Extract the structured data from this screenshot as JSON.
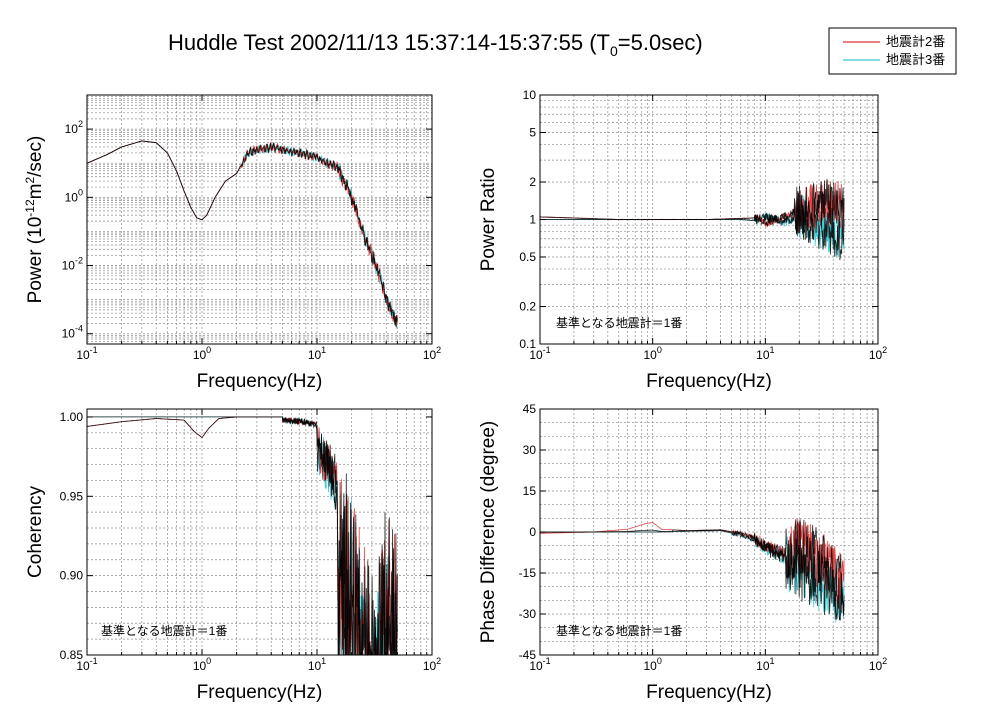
{
  "title": "Huddle Test  2002/11/13  15:37:14-15:37:55 (T",
  "title_sub": "0",
  "title_tail": "=5.0sec)",
  "legend": {
    "entries": [
      {
        "label": "地震計2番",
        "color": "#e03030"
      },
      {
        "label": "地震計3番",
        "color": "#30c8d0"
      }
    ]
  },
  "colors": {
    "ref": "#000000",
    "s2": "#e03030",
    "s3": "#30c8d0"
  },
  "annotation": "基準となる地震計＝1番",
  "chart_data": [
    {
      "id": "power",
      "type": "line",
      "xscale": "log",
      "yscale": "log",
      "xlim": [
        0.1,
        100
      ],
      "ylim": [
        5e-05,
        1000
      ],
      "xlabel": "Frequency(Hz)",
      "ylabel": "Power (10^-12 m^2/sec)",
      "xticks": [
        "10^-1",
        "10^0",
        "10^1",
        "10^2"
      ],
      "yticks": [
        "10^-4",
        "10^-2",
        "10^0",
        "10^2"
      ],
      "series": [
        {
          "x": [
            0.1,
            0.15,
            0.2,
            0.3,
            0.4,
            0.5,
            0.6,
            0.7,
            0.8,
            0.9,
            1.0,
            1.1,
            1.3,
            1.6,
            2.0,
            2.5,
            3,
            4,
            5,
            7,
            10,
            12,
            15,
            20,
            25,
            30,
            35,
            40,
            45,
            50
          ],
          "y": [
            10,
            18,
            30,
            45,
            40,
            20,
            6,
            1.5,
            0.5,
            0.25,
            0.22,
            0.3,
            1,
            3,
            5,
            20,
            25,
            30,
            25,
            20,
            15,
            10,
            8,
            1,
            0.1,
            0.02,
            0.005,
            0.001,
            0.0004,
            0.0002
          ]
        }
      ]
    },
    {
      "id": "ratio",
      "type": "line",
      "xscale": "log",
      "yscale": "log",
      "xlim": [
        0.1,
        100
      ],
      "ylim": [
        0.1,
        10
      ],
      "xlabel": "Frequency(Hz)",
      "ylabel": "Power Ratio",
      "xticks": [
        "10^-1",
        "10^0",
        "10^1",
        "10^2"
      ],
      "yticks": [
        "0.1",
        "0.2",
        "0.5",
        "1",
        "2",
        "5",
        "10"
      ],
      "annotation": "基準となる地震計＝1番",
      "series": [
        {
          "name": "地震計2番",
          "x": [
            0.1,
            0.5,
            1,
            3,
            6,
            8,
            10,
            15,
            20,
            30,
            40,
            50
          ],
          "y": [
            1.05,
            1.0,
            1.0,
            1.0,
            1.02,
            1.03,
            0.95,
            1.05,
            1.2,
            1.3,
            1.4,
            1.2
          ]
        },
        {
          "name": "地震計3番",
          "x": [
            0.1,
            0.5,
            1,
            3,
            6,
            8,
            10,
            15,
            20,
            30,
            40,
            50
          ],
          "y": [
            1.0,
            1.0,
            1.0,
            1.0,
            1.0,
            0.98,
            1.05,
            0.95,
            1.1,
            0.9,
            0.8,
            0.7
          ]
        }
      ]
    },
    {
      "id": "coherency",
      "type": "line",
      "xscale": "log",
      "yscale": "linear",
      "xlim": [
        0.1,
        100
      ],
      "ylim": [
        0.85,
        1.005
      ],
      "xlabel": "Frequency(Hz)",
      "ylabel": "Coherency",
      "xticks": [
        "10^-1",
        "10^0",
        "10^1",
        "10^2"
      ],
      "yticks": [
        "0.85",
        "0.90",
        "0.95",
        "1.00"
      ],
      "annotation": "基準となる地震計＝1番",
      "series": [
        {
          "name": "地震計2番",
          "x": [
            0.1,
            0.2,
            0.4,
            0.7,
            0.85,
            1.0,
            1.15,
            1.4,
            2,
            5,
            8,
            10,
            20,
            30,
            40,
            50
          ],
          "y": [
            0.994,
            0.997,
            0.999,
            0.998,
            0.991,
            0.987,
            0.993,
            0.999,
            1.0,
            1.0,
            0.999,
            0.997,
            0.96,
            0.9,
            0.95,
            0.93
          ]
        },
        {
          "name": "地震計3番",
          "x": [
            0.1,
            0.5,
            1,
            2,
            5,
            8,
            10,
            20,
            30,
            40,
            50
          ],
          "y": [
            1.0,
            1.0,
            1.0,
            1.0,
            1.0,
            0.999,
            0.996,
            0.95,
            0.88,
            0.93,
            0.9
          ]
        }
      ]
    },
    {
      "id": "phase",
      "type": "line",
      "xscale": "log",
      "yscale": "linear",
      "xlim": [
        0.1,
        100
      ],
      "ylim": [
        -45,
        45
      ],
      "xlabel": "Frequency(Hz)",
      "ylabel": "Phase Difference (degree)",
      "xticks": [
        "10^-1",
        "10^0",
        "10^1",
        "10^2"
      ],
      "yticks": [
        "-45",
        "-30",
        "-15",
        "0",
        "15",
        "30",
        "45"
      ],
      "annotation": "基準となる地震計＝1番",
      "series": [
        {
          "name": "地震計2番",
          "x": [
            0.1,
            0.3,
            0.6,
            0.85,
            1.0,
            1.2,
            2,
            4,
            6,
            8,
            10,
            15,
            20,
            30,
            40,
            50
          ],
          "y": [
            -0.5,
            0,
            1,
            3,
            3.5,
            1,
            0.5,
            0.8,
            -0.5,
            -2,
            -5,
            -8,
            -5,
            -10,
            -15,
            -20
          ]
        },
        {
          "name": "地震計3番",
          "x": [
            0.1,
            0.5,
            1,
            2,
            4,
            6,
            8,
            10,
            15,
            20,
            30,
            40,
            50
          ],
          "y": [
            0,
            0,
            0,
            0.3,
            0.5,
            -1,
            -3,
            -6,
            -10,
            -14,
            -18,
            -22,
            -25
          ]
        }
      ]
    }
  ]
}
